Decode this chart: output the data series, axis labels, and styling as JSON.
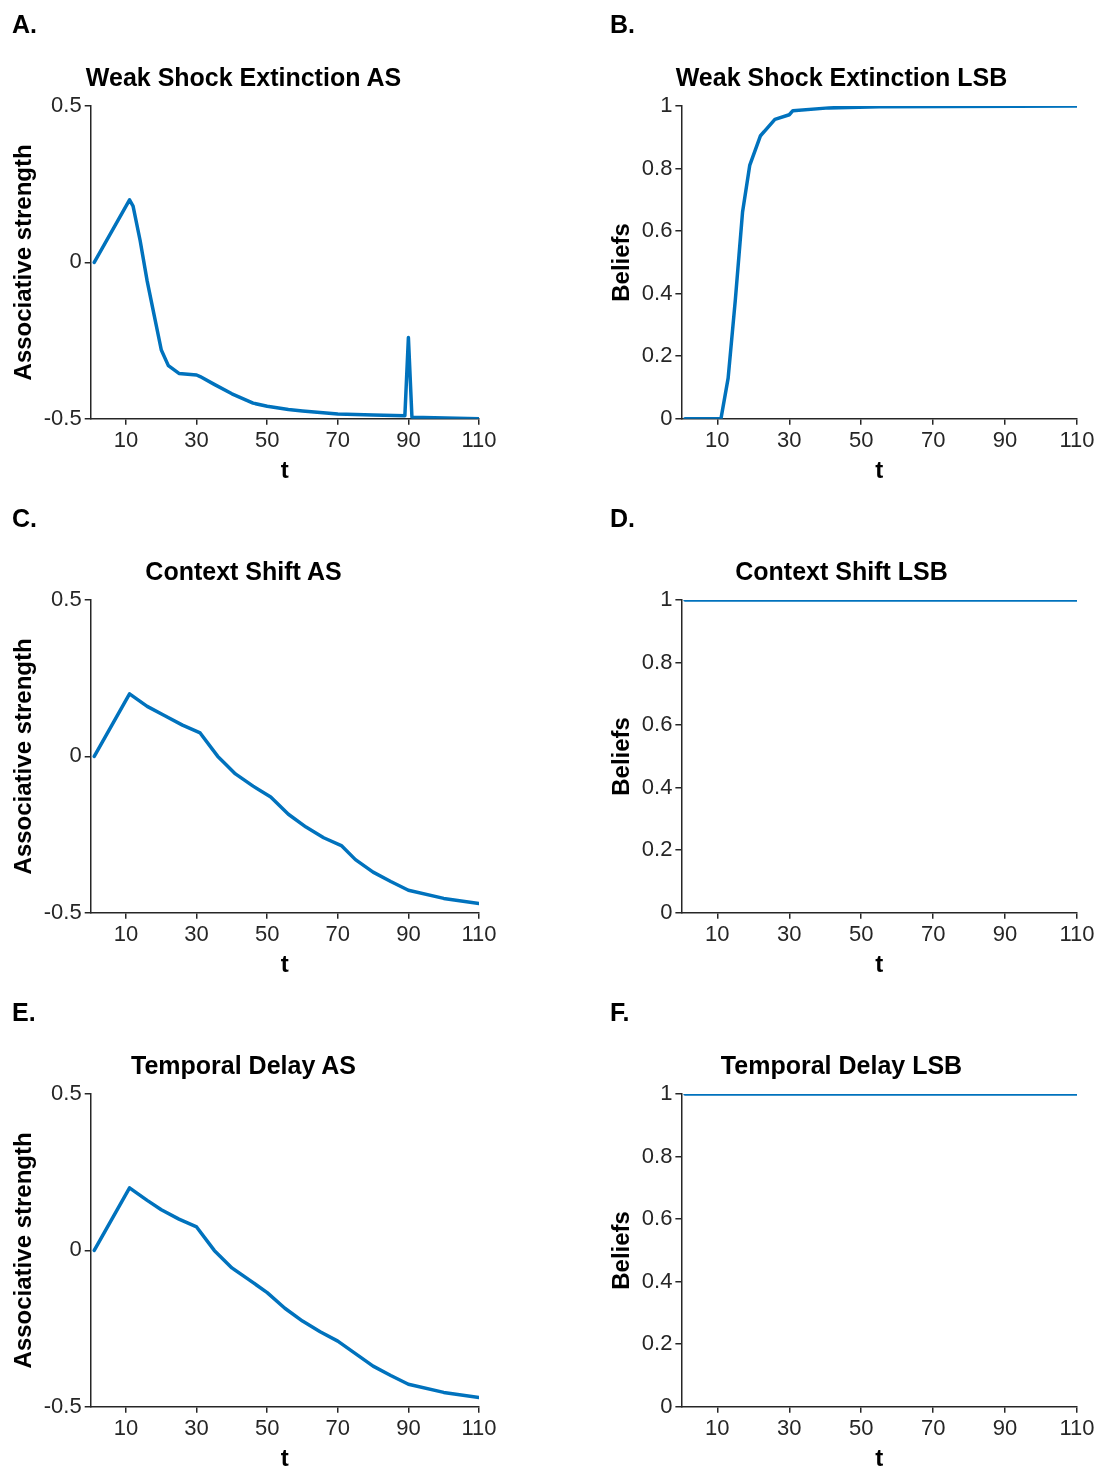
{
  "chart_data": [
    {
      "type": "line",
      "title": "Weak Shock Extinction AS",
      "xlabel": "t",
      "ylabel": "Associative strength",
      "annotations": [
        "A."
      ],
      "x": [
        1,
        11,
        12,
        14,
        16,
        18,
        20,
        22,
        25,
        30,
        31,
        35,
        40,
        46,
        50,
        56,
        60,
        70,
        80,
        89,
        90,
        91,
        110
      ],
      "series": [
        {
          "color": "#0072bd",
          "values": [
            0,
            0.2,
            0.18,
            0.07,
            -0.06,
            -0.17,
            -0.28,
            -0.33,
            -0.355,
            -0.36,
            -0.365,
            -0.39,
            -0.42,
            -0.45,
            -0.46,
            -0.47,
            -0.475,
            -0.485,
            -0.488,
            -0.49,
            -0.24,
            -0.495,
            -0.5
          ]
        }
      ],
      "xlim": [
        0,
        110
      ],
      "ylim": [
        -0.5,
        0.5
      ],
      "xticks": [
        10,
        30,
        50,
        70,
        90,
        110
      ],
      "yticks": [
        -0.5,
        0,
        0.5
      ]
    },
    {
      "type": "line",
      "title": "Weak Shock Extinction LSB",
      "xlabel": "t",
      "ylabel": "Beliefs",
      "annotations": [
        "B."
      ],
      "x": [
        1,
        11,
        13,
        15,
        17,
        19,
        22,
        26,
        30,
        31,
        41,
        55,
        110
      ],
      "series": [
        {
          "color": "#0072bd",
          "values": [
            0,
            0,
            0.13,
            0.38,
            0.66,
            0.81,
            0.905,
            0.957,
            0.972,
            0.985,
            0.994,
            0.998,
            1
          ]
        }
      ],
      "xlim": [
        0,
        110
      ],
      "ylim": [
        0,
        1
      ],
      "xticks": [
        10,
        30,
        50,
        70,
        90,
        110
      ],
      "yticks": [
        0,
        0.2,
        0.4,
        0.6,
        0.8,
        1
      ]
    },
    {
      "type": "line",
      "title": "Context Shift AS",
      "xlabel": "t",
      "ylabel": "Associative strength",
      "annotations": [
        "C."
      ],
      "x": [
        1,
        11,
        16,
        21,
        26,
        31,
        36,
        41,
        46,
        51,
        56,
        61,
        66,
        71,
        75,
        80,
        85,
        90,
        100,
        110
      ],
      "series": [
        {
          "color": "#0072bd",
          "values": [
            0,
            0.2,
            0.16,
            0.13,
            0.1,
            0.075,
            0.0,
            -0.056,
            -0.095,
            -0.13,
            -0.185,
            -0.226,
            -0.26,
            -0.285,
            -0.33,
            -0.37,
            -0.4,
            -0.428,
            -0.454,
            -0.47
          ]
        }
      ],
      "xlim": [
        0,
        110
      ],
      "ylim": [
        -0.5,
        0.5
      ],
      "xticks": [
        10,
        30,
        50,
        70,
        90,
        110
      ],
      "yticks": [
        -0.5,
        0,
        0.5
      ]
    },
    {
      "type": "line",
      "title": "Context Shift LSB",
      "xlabel": "t",
      "ylabel": "Beliefs",
      "annotations": [
        "D."
      ],
      "x": [
        1,
        110
      ],
      "series": [
        {
          "color": "#0072bd",
          "values": [
            1,
            1
          ]
        }
      ],
      "xlim": [
        0,
        110
      ],
      "ylim": [
        0,
        1
      ],
      "xticks": [
        10,
        30,
        50,
        70,
        90,
        110
      ],
      "yticks": [
        0,
        0.2,
        0.4,
        0.6,
        0.8,
        1
      ]
    },
    {
      "type": "line",
      "title": "Temporal Delay AS",
      "xlabel": "t",
      "ylabel": "Associative strength",
      "annotations": [
        "E."
      ],
      "x": [
        1,
        11,
        16,
        20,
        25,
        30,
        35,
        40,
        45,
        50,
        55,
        60,
        65,
        70,
        75,
        80,
        85,
        90,
        100,
        110
      ],
      "series": [
        {
          "color": "#0072bd",
          "values": [
            0,
            0.2,
            0.16,
            0.13,
            0.1,
            0.075,
            0.0,
            -0.056,
            -0.095,
            -0.135,
            -0.185,
            -0.226,
            -0.26,
            -0.29,
            -0.33,
            -0.37,
            -0.4,
            -0.428,
            -0.454,
            -0.47
          ]
        }
      ],
      "xlim": [
        0,
        110
      ],
      "ylim": [
        -0.5,
        0.5
      ],
      "xticks": [
        10,
        30,
        50,
        70,
        90,
        110
      ],
      "yticks": [
        -0.5,
        0,
        0.5
      ]
    },
    {
      "type": "line",
      "title": "Temporal Delay LSB",
      "xlabel": "t",
      "ylabel": "Beliefs",
      "annotations": [
        "F."
      ],
      "x": [
        1,
        110
      ],
      "series": [
        {
          "color": "#0072bd",
          "values": [
            1,
            1
          ]
        }
      ],
      "xlim": [
        0,
        110
      ],
      "ylim": [
        0,
        1
      ],
      "xticks": [
        10,
        30,
        50,
        70,
        90,
        110
      ],
      "yticks": [
        0,
        0.2,
        0.4,
        0.6,
        0.8,
        1
      ]
    }
  ]
}
